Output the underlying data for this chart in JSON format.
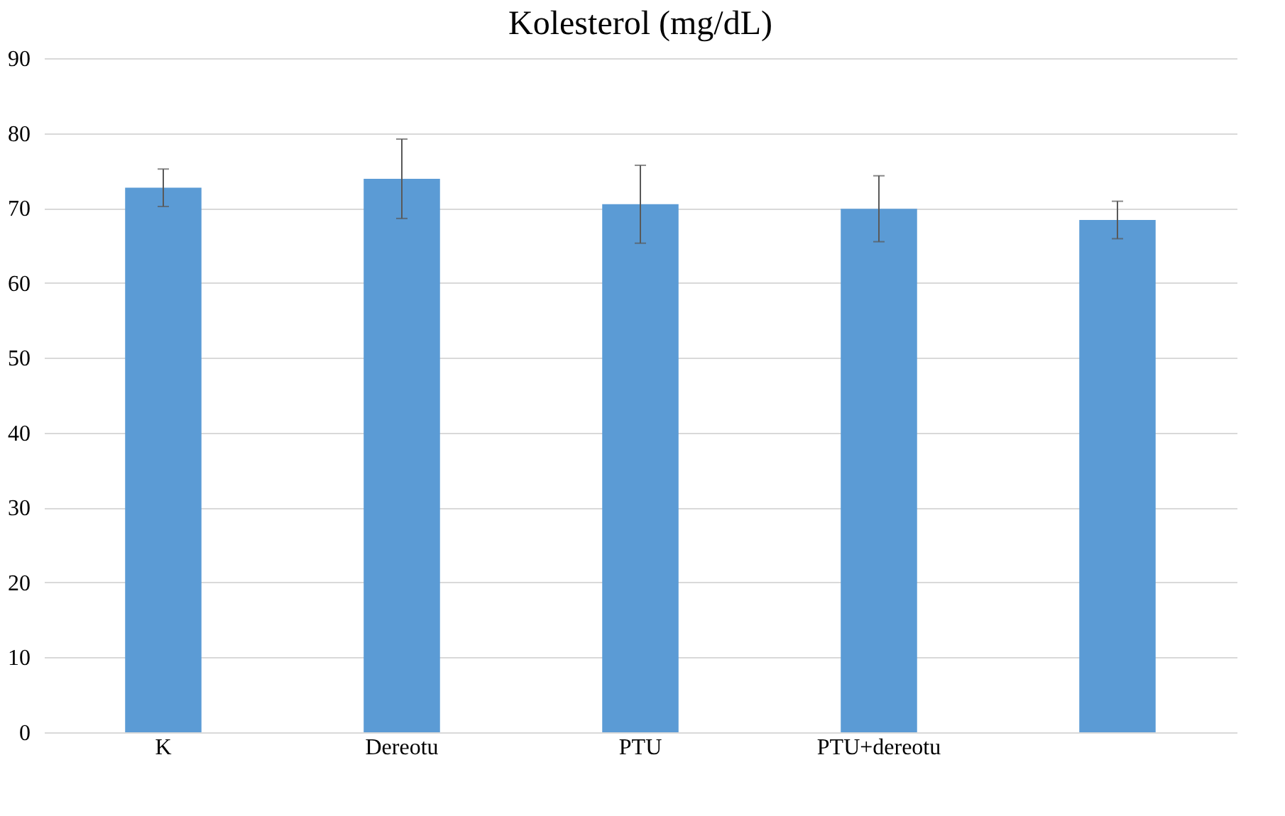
{
  "chart_data": {
    "type": "bar",
    "title": "Kolesterol (mg/dL)",
    "categories": [
      "K",
      "Dereotu",
      "PTU",
      "PTU+dereotu",
      null
    ],
    "values": [
      72.7,
      73.9,
      70.5,
      69.9,
      68.4
    ],
    "errors": [
      2.5,
      5.3,
      5.2,
      4.4,
      2.5
    ],
    "color": "#5b9bd5",
    "ylim": [
      0,
      90
    ],
    "yticks": [
      0,
      10,
      20,
      30,
      40,
      50,
      60,
      70,
      80,
      90
    ],
    "grid": "y"
  }
}
